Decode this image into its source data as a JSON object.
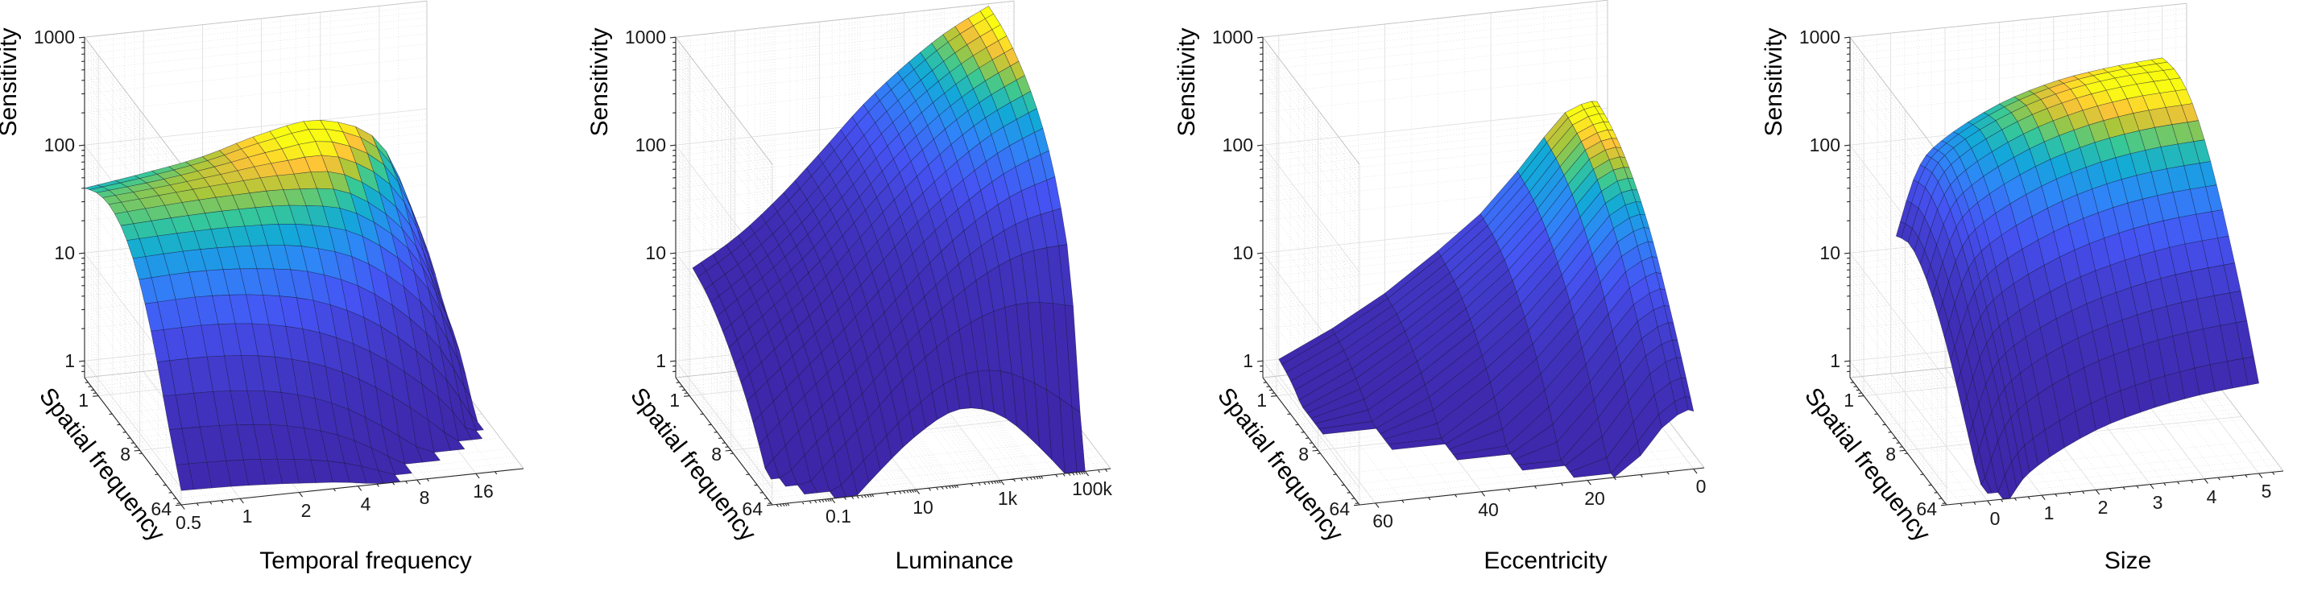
{
  "colors": {
    "background": "#ffffff",
    "parula": [
      "#3e26a8",
      "#4653f3",
      "#2e87f7",
      "#12a9d8",
      "#37c897",
      "#abc739",
      "#fec338",
      "#f9fb15",
      "#f9fb0e"
    ],
    "mesh_line": "#10102a",
    "grid_major": "#e0e0e0",
    "grid_minor": "#dcdcdc",
    "box_edge": "#c4c4c4",
    "axis_ruler": "#262626",
    "text": "#191919"
  },
  "chart_data": [
    {
      "type": "surface",
      "xlabel": "Temporal frequency",
      "ylabel": "Spatial frequency",
      "zlabel": "Sensitivity",
      "x_scale": "log",
      "xlim": [
        0.5,
        28
      ],
      "x_ticks": [
        0.5,
        1,
        2,
        4,
        8,
        16
      ],
      "x_tick_labels": [
        "0.5",
        "1",
        "2",
        "4",
        "8",
        "16"
      ],
      "y_scale": "log",
      "ylim": [
        0.5,
        64
      ],
      "y_ticks": [
        1,
        8,
        64
      ],
      "y_tick_labels": [
        "1",
        "8",
        "64"
      ],
      "z_scale": "log",
      "zlim": [
        0.7,
        1000
      ],
      "z_ticks": [
        1,
        10,
        100,
        1000
      ],
      "z_tick_labels": [
        "1",
        "10",
        "100",
        "1000"
      ],
      "x": [
        0.5,
        1,
        2,
        4,
        8,
        16,
        25
      ],
      "y": [
        0.5,
        1,
        2,
        4,
        8,
        16,
        32,
        64
      ],
      "z": [
        [
          40,
          48,
          60,
          85,
          100,
          55,
          9
        ],
        [
          52,
          58,
          68,
          82,
          85,
          38,
          6
        ],
        [
          55,
          60,
          64,
          65,
          54,
          19,
          3.2
        ],
        [
          44,
          46,
          46,
          42,
          29,
          10,
          2
        ],
        [
          25,
          26,
          24,
          19,
          10.5,
          3.4,
          0.9
        ],
        [
          10,
          10,
          8.7,
          6,
          3,
          1.05,
          0.35
        ],
        [
          2.9,
          2.8,
          2.4,
          1.6,
          0.75,
          0.3,
          0.14
        ],
        [
          0.95,
          0.92,
          0.85,
          0.75,
          0.55,
          0.25,
          0.1
        ]
      ]
    },
    {
      "type": "surface",
      "xlabel": "Luminance",
      "ylabel": "Spatial frequency",
      "zlabel": "Sensitivity",
      "x_scale": "log",
      "xlim": [
        0.004,
        400000
      ],
      "x_ticks": [
        0.1,
        10,
        1000,
        100000
      ],
      "x_tick_labels": [
        "0.1",
        "10",
        "1k",
        "100k"
      ],
      "y_scale": "log",
      "ylim": [
        0.5,
        64
      ],
      "y_ticks": [
        1,
        8,
        64
      ],
      "y_tick_labels": [
        "1",
        "8",
        "64"
      ],
      "z_scale": "log",
      "zlim": [
        0.7,
        1000
      ],
      "z_ticks": [
        1,
        10,
        100,
        1000
      ],
      "z_tick_labels": [
        "1",
        "10",
        "100",
        "1000"
      ],
      "x": [
        0.01,
        0.1,
        1,
        10,
        100,
        1000,
        10000,
        100000
      ],
      "y": [
        0.5,
        1,
        2,
        4,
        8,
        16,
        32,
        64
      ],
      "z": [
        [
          7,
          12,
          25,
          60,
          150,
          320,
          600,
          950
        ],
        [
          6,
          11,
          23,
          55,
          140,
          300,
          560,
          880
        ],
        [
          4.5,
          9,
          19,
          46,
          115,
          250,
          460,
          720
        ],
        [
          3,
          6.5,
          14,
          35,
          85,
          185,
          340,
          520
        ],
        [
          1.8,
          4,
          9,
          22,
          54,
          115,
          210,
          310
        ],
        [
          0.9,
          2.2,
          5,
          12,
          29,
          60,
          100,
          130
        ],
        [
          0.4,
          1.0,
          2.4,
          6,
          13,
          22,
          28,
          26
        ],
        [
          0.15,
          0.4,
          1.0,
          2.2,
          3.5,
          2.8,
          1.2,
          0.4
        ]
      ]
    },
    {
      "type": "surface",
      "xlabel": "Eccentricity",
      "ylabel": "Spatial frequency",
      "zlabel": "Sensitivity",
      "x_scale": "linear",
      "xlim": [
        63,
        -2
      ],
      "x_ticks": [
        60,
        40,
        20,
        0
      ],
      "x_tick_labels": [
        "60",
        "40",
        "20",
        "0"
      ],
      "y_scale": "log",
      "ylim": [
        0.5,
        64
      ],
      "y_ticks": [
        1,
        8,
        64
      ],
      "y_tick_labels": [
        "1",
        "8",
        "64"
      ],
      "z_scale": "log",
      "zlim": [
        0.7,
        1000
      ],
      "z_ticks": [
        1,
        10,
        100,
        1000
      ],
      "z_tick_labels": [
        "1",
        "10",
        "100",
        "1000"
      ],
      "x": [
        60,
        50,
        40,
        30,
        22,
        15,
        10,
        6,
        3,
        1,
        0
      ],
      "y": [
        0.5,
        1,
        2,
        4,
        8,
        16,
        32,
        64
      ],
      "z": [
        [
          1.0,
          1.7,
          3.2,
          7,
          14,
          32,
          62,
          100,
          115,
          120,
          118
        ],
        [
          0.85,
          1.45,
          2.8,
          6,
          12.5,
          28,
          54,
          88,
          102,
          106,
          104
        ],
        [
          0.6,
          1.05,
          2.1,
          4.6,
          9.5,
          21,
          41,
          67,
          79,
          82,
          80
        ],
        [
          0.4,
          0.7,
          1.35,
          2.9,
          6,
          13.5,
          26,
          43,
          52,
          54,
          53
        ],
        [
          0.22,
          0.4,
          0.75,
          1.6,
          3.3,
          7.5,
          14.5,
          24,
          29,
          31,
          30
        ],
        [
          0.1,
          0.18,
          0.34,
          0.72,
          1.5,
          3.4,
          6.6,
          11,
          13.5,
          14.5,
          14
        ],
        [
          0.05,
          0.08,
          0.14,
          0.3,
          0.6,
          1.35,
          2.7,
          4.6,
          5.7,
          6.1,
          6
        ],
        [
          0.02,
          0.03,
          0.06,
          0.12,
          0.24,
          0.52,
          1.05,
          1.8,
          2.3,
          2.5,
          2.4
        ]
      ]
    },
    {
      "type": "surface",
      "xlabel": "Size",
      "ylabel": "Spatial frequency",
      "zlabel": "Sensitivity",
      "x_scale": "linear",
      "xlim": [
        -0.75,
        5.45
      ],
      "x_ticks": [
        0,
        1,
        2,
        3,
        4,
        5
      ],
      "x_tick_labels": [
        "0",
        "1",
        "2",
        "3",
        "4",
        "5"
      ],
      "y_scale": "log",
      "ylim": [
        0.5,
        64
      ],
      "y_ticks": [
        1,
        8,
        64
      ],
      "y_tick_labels": [
        "1",
        "8",
        "64"
      ],
      "z_scale": "log",
      "zlim": [
        0.7,
        1000
      ],
      "z_ticks": [
        1,
        10,
        100,
        1000
      ],
      "z_tick_labels": [
        "1",
        "10",
        "100",
        "1000"
      ],
      "x": [
        0.1,
        0.5,
        1,
        2,
        3,
        4,
        5
      ],
      "y": [
        0.5,
        1,
        2,
        4,
        8,
        16,
        32,
        64
      ],
      "z": [
        [
          13,
          52,
          95,
          175,
          250,
          300,
          330
        ],
        [
          16,
          62,
          115,
          205,
          290,
          345,
          365
        ],
        [
          13,
          50,
          92,
          168,
          240,
          290,
          310
        ],
        [
          8,
          31,
          57,
          103,
          148,
          180,
          195
        ],
        [
          4,
          15,
          28,
          50,
          72,
          88,
          96
        ],
        [
          1.7,
          6.3,
          11.5,
          20.5,
          29,
          36,
          40
        ],
        [
          0.7,
          2.4,
          4.4,
          7.8,
          11,
          13.5,
          15
        ],
        [
          0.25,
          0.8,
          1.4,
          2.5,
          3.5,
          4.3,
          4.8
        ]
      ]
    }
  ]
}
